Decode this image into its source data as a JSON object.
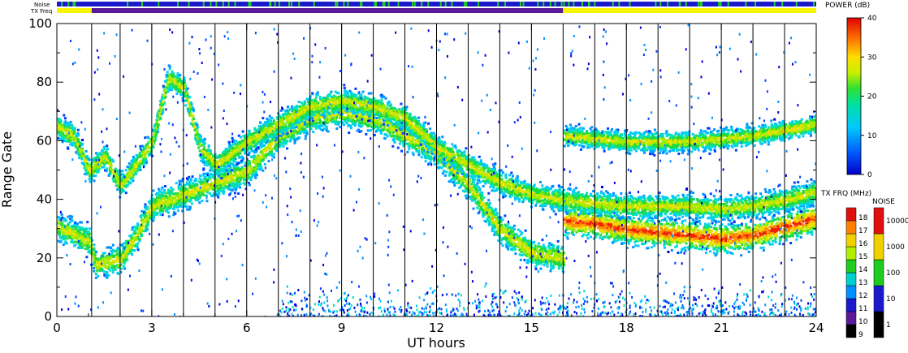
{
  "chart_data": {
    "type": "heatmap",
    "xlabel": "UT hours",
    "ylabel": "Range Gate",
    "xlim": [
      0,
      24
    ],
    "ylim": [
      0,
      100
    ],
    "x_ticks": [
      "0",
      "3",
      "6",
      "9",
      "12",
      "15",
      "18",
      "21",
      "24"
    ],
    "y_ticks": [
      "0",
      "20",
      "40",
      "60",
      "80",
      "100"
    ],
    "vertical_marker_hours": [
      1,
      2,
      3,
      4,
      5,
      6,
      7,
      8,
      9,
      10,
      11,
      12,
      13,
      14,
      15,
      16,
      17,
      18,
      19,
      20,
      21,
      22,
      23
    ],
    "top_strips": {
      "noise_label": "Noise",
      "txfreq_label": "TX Freq",
      "noise_color": "#1a1acc",
      "noise_speckle_color": "#22cc22",
      "txfreq_segments": [
        {
          "start": 0,
          "end": 1.1,
          "color": "#f5f500"
        },
        {
          "start": 1.1,
          "end": 16,
          "color": "#5a1a9a"
        },
        {
          "start": 16,
          "end": 24,
          "color": "#f5f500"
        }
      ]
    },
    "power_colorbar": {
      "title": "POWER (dB)",
      "range": [
        0,
        40
      ],
      "ticks": [
        "0",
        "10",
        "20",
        "30",
        "40"
      ]
    },
    "txfreq_colorbar": {
      "title": "TX FRQ (MHz)",
      "ticks": [
        "9",
        "10",
        "11",
        "12",
        "13",
        "14",
        "15",
        "16",
        "17",
        "18"
      ]
    },
    "noise_colorbar": {
      "title": "NOISE",
      "ticks": [
        "1",
        "10",
        "100",
        "1000",
        "10000"
      ]
    },
    "echo_bands": [
      {
        "name": "main-band",
        "points": [
          [
            0,
            31
          ],
          [
            1,
            26
          ],
          [
            1.2,
            18
          ],
          [
            2,
            20
          ],
          [
            2.5,
            28
          ],
          [
            3,
            38
          ],
          [
            4,
            42
          ],
          [
            5,
            46
          ],
          [
            6,
            50
          ],
          [
            7,
            62
          ],
          [
            8,
            68
          ],
          [
            9,
            70
          ],
          [
            10,
            68
          ],
          [
            11,
            62
          ],
          [
            12,
            56
          ],
          [
            13,
            45
          ],
          [
            14,
            30
          ],
          [
            15,
            22
          ],
          [
            16,
            20
          ]
        ],
        "width": 7
      },
      {
        "name": "upper-band",
        "points": [
          [
            0,
            65
          ],
          [
            0.5,
            62
          ],
          [
            1,
            50
          ],
          [
            1.5,
            55
          ],
          [
            2,
            45
          ],
          [
            3,
            60
          ],
          [
            3.5,
            82
          ],
          [
            4,
            78
          ],
          [
            4.5,
            58
          ],
          [
            5,
            52
          ],
          [
            6,
            60
          ],
          [
            7,
            66
          ],
          [
            8,
            72
          ],
          [
            9,
            74
          ],
          [
            10,
            72
          ],
          [
            11,
            68
          ],
          [
            12,
            58
          ],
          [
            13,
            52
          ],
          [
            14,
            46
          ],
          [
            15,
            42
          ],
          [
            16,
            40
          ]
        ],
        "width": 6
      },
      {
        "name": "late-low-band",
        "points": [
          [
            16,
            33
          ],
          [
            17,
            32
          ],
          [
            18,
            30
          ],
          [
            19,
            29
          ],
          [
            20,
            28
          ],
          [
            21,
            27
          ],
          [
            22,
            28
          ],
          [
            23,
            31
          ],
          [
            24,
            34
          ]
        ],
        "width": 7
      },
      {
        "name": "late-mid-band",
        "points": [
          [
            16,
            40
          ],
          [
            17,
            39
          ],
          [
            18,
            38
          ],
          [
            19,
            38
          ],
          [
            20,
            38
          ],
          [
            21,
            37
          ],
          [
            22,
            38
          ],
          [
            23,
            40
          ],
          [
            24,
            43
          ]
        ],
        "width": 6
      },
      {
        "name": "late-upper-band",
        "points": [
          [
            16,
            62
          ],
          [
            17,
            61
          ],
          [
            18,
            60
          ],
          [
            19,
            60
          ],
          [
            20,
            60
          ],
          [
            21,
            61
          ],
          [
            22,
            62
          ],
          [
            23,
            64
          ],
          [
            24,
            66
          ]
        ],
        "width": 5
      }
    ]
  }
}
